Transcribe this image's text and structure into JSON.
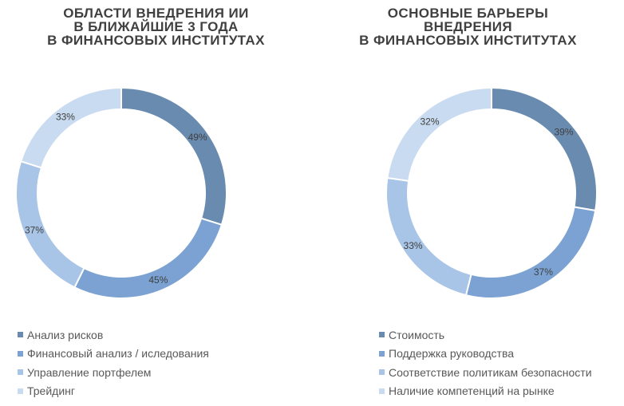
{
  "colors": [
    "#6a8bb0",
    "#7ba2d2",
    "#a8c4e6",
    "#c9dbf0"
  ],
  "chart_data": [
    {
      "type": "pie",
      "variant": "donut",
      "title_lines": [
        "ОБЛАСТИ ВНЕДРЕНИЯ ИИ",
        "В БЛИЖАЙШИЕ 3 ГОДА",
        "В ФИНАНСОВЫХ ИНСТИТУТАХ"
      ],
      "categories": [
        "Анализ рисков",
        "Финансовый анализ / иследования",
        "Управление портфелем",
        "Трейдинг"
      ],
      "values": [
        49,
        45,
        37,
        33
      ],
      "labels": [
        "49%",
        "45%",
        "37%",
        "33%"
      ],
      "legend_position": "bottom"
    },
    {
      "type": "pie",
      "variant": "donut",
      "title_lines": [
        "ОСНОВНЫЕ БАРЬЕРЫ",
        "ВНЕДРЕНИЯ",
        "В ФИНАНСОВЫХ ИНСТИТУТАХ"
      ],
      "categories": [
        "Стоимость",
        "Поддержка руководства",
        "Соответствие политикам безопасности",
        "Наличие компетенций на рынке"
      ],
      "values": [
        39,
        37,
        33,
        32
      ],
      "labels": [
        "39%",
        "37%",
        "33%",
        "32%"
      ],
      "legend_position": "bottom"
    }
  ]
}
